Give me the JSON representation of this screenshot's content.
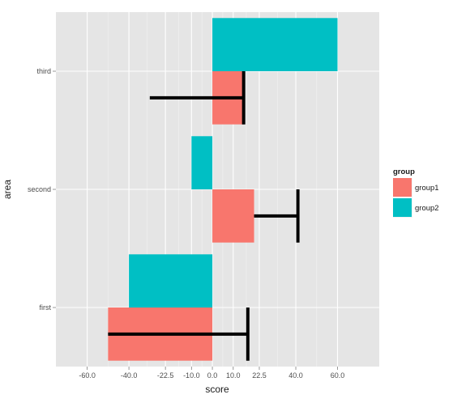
{
  "chart_data": {
    "type": "bar",
    "orientation": "horizontal",
    "xlabel": "score",
    "ylabel": "area",
    "xlim": [
      -75,
      80
    ],
    "x_ticks": [
      -60,
      -40,
      -22.5,
      -10,
      0,
      10,
      22.5,
      40,
      60
    ],
    "x_tick_labels": [
      "-60.0",
      "-40.0",
      "-22.5",
      "-10.0",
      "0.0",
      "10.0",
      "22.5",
      "40.0",
      "60.0"
    ],
    "categories": [
      "first",
      "second",
      "third"
    ],
    "series": [
      {
        "name": "group1",
        "color": "#F8766D",
        "values": [
          -50,
          20,
          15
        ]
      },
      {
        "name": "group2",
        "color": "#00BFC4",
        "values": [
          -40,
          -10,
          60
        ]
      }
    ],
    "error_bars": [
      {
        "category": "first",
        "series": "group1",
        "from": -50,
        "to": 17
      },
      {
        "category": "second",
        "series": "group1",
        "from": 20,
        "to": 41
      },
      {
        "category": "third",
        "series": "group1",
        "from": -30,
        "to": 15
      }
    ],
    "legend": {
      "title": "group",
      "placement": "right"
    },
    "grid": true,
    "background": "#E5E5E5"
  }
}
